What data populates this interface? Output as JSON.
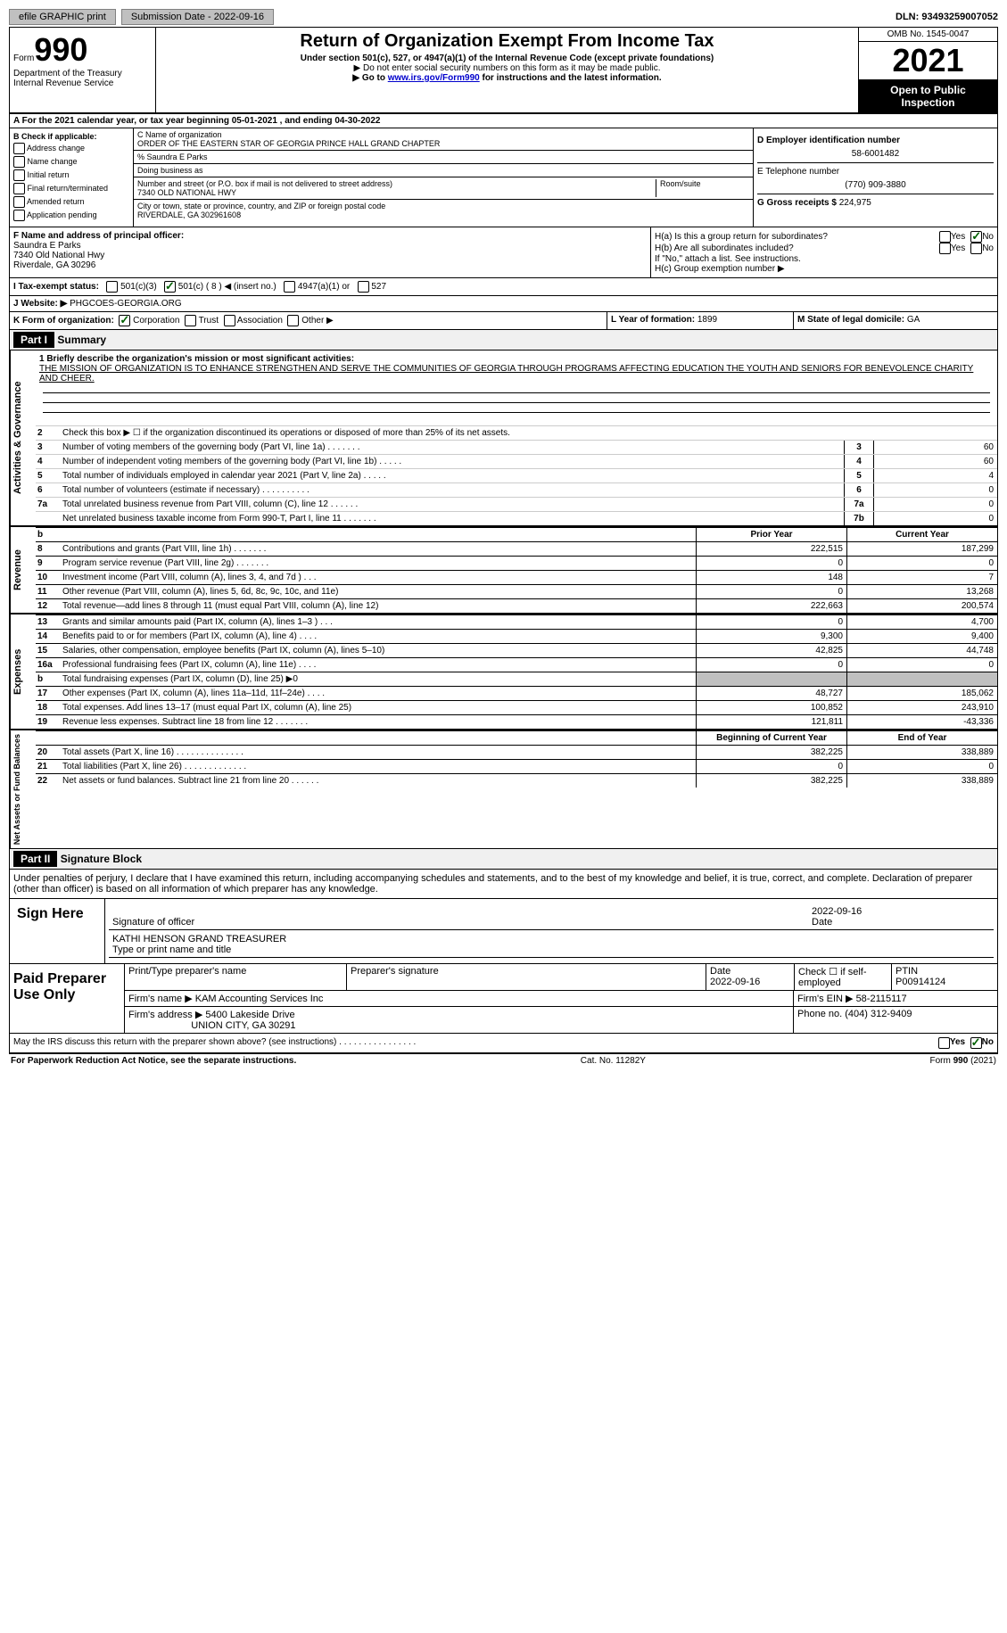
{
  "topbar": {
    "efile": "efile GRAPHIC print",
    "submission": "Submission Date - 2022-09-16",
    "dln": "DLN: 93493259007052"
  },
  "header": {
    "form_prefix": "Form",
    "form_number": "990",
    "dept": "Department of the Treasury",
    "irs": "Internal Revenue Service",
    "title": "Return of Organization Exempt From Income Tax",
    "subtitle": "Under section 501(c), 527, or 4947(a)(1) of the Internal Revenue Code (except private foundations)",
    "note1": "▶ Do not enter social security numbers on this form as it may be made public.",
    "note2_pre": "▶ Go to ",
    "note2_link": "www.irs.gov/Form990",
    "note2_post": " for instructions and the latest information.",
    "omb": "OMB No. 1545-0047",
    "year": "2021",
    "inspect": "Open to Public Inspection"
  },
  "rowA": "A For the 2021 calendar year, or tax year beginning 05-01-2021    , and ending 04-30-2022",
  "sectionB": {
    "label": "B Check if applicable:",
    "opts": [
      "Address change",
      "Name change",
      "Initial return",
      "Final return/terminated",
      "Amended return",
      "Application pending"
    ]
  },
  "sectionC": {
    "name_label": "C Name of organization",
    "name": "ORDER OF THE EASTERN STAR OF GEORGIA PRINCE HALL GRAND CHAPTER",
    "pct": "% Saundra E Parks",
    "dba_label": "Doing business as",
    "street_label": "Number and street (or P.O. box if mail is not delivered to street address)",
    "room_label": "Room/suite",
    "street": "7340 OLD NATIONAL HWY",
    "city_label": "City or town, state or province, country, and ZIP or foreign postal code",
    "city": "RIVERDALE, GA  302961608"
  },
  "sectionD": {
    "ein_label": "D Employer identification number",
    "ein": "58-6001482",
    "tel_label": "E Telephone number",
    "tel": "(770) 909-3880",
    "gross_label": "G Gross receipts $",
    "gross": "224,975"
  },
  "sectionF": {
    "label": "F   Name and address of principal officer:",
    "name": "Saundra E Parks",
    "street": "7340 Old National Hwy",
    "city": "Riverdale, GA   30296"
  },
  "sectionH": {
    "h_a": "H(a)   Is this a group return for subordinates?",
    "h_b": "H(b)   Are all subordinates included?",
    "h_note": "If \"No,\" attach a list. See instructions.",
    "h_c": "H(c)   Group exemption number ▶"
  },
  "rowI": {
    "label": "I     Tax-exempt status:",
    "c3": "501(c)(3)",
    "c": "501(c) ( 8 ) ◀ (insert no.)",
    "a1": "4947(a)(1) or",
    "s527": "527"
  },
  "rowJ": {
    "label": "J    Website: ▶",
    "value": "PHGCOES-GEORGIA.ORG"
  },
  "rowK": {
    "label": "K Form of organization:",
    "corp": "Corporation",
    "trust": "Trust",
    "assoc": "Association",
    "other": "Other ▶",
    "l_label": "L Year of formation:",
    "l_value": "1899",
    "m_label": "M State of legal domicile:",
    "m_value": "GA"
  },
  "part1": {
    "header": "Part I",
    "title": "Summary",
    "vlabel_gov": "Activities & Governance",
    "vlabel_rev": "Revenue",
    "vlabel_exp": "Expenses",
    "vlabel_net": "Net Assets or Fund Balances",
    "line1_label": "1   Briefly describe the organization's mission or most significant activities:",
    "mission": "THE MISSION OF ORGANIZATION IS TO ENHANCE STRENGTHEN AND SERVE THE COMMUNITIES OF GEORGIA THROUGH PROGRAMS AFFECTING EDUCATION THE YOUTH AND SENIORS FOR BENEVOLENCE CHARITY AND CHEER.",
    "line2": "Check this box ▶ ☐ if the organization discontinued its operations or disposed of more than 25% of its net assets.",
    "lines_gov": [
      {
        "n": "3",
        "desc": "Number of voting members of the governing body (Part VI, line 1a)   .   .   .   .   .   .   .",
        "box": "3",
        "val": "60"
      },
      {
        "n": "4",
        "desc": "Number of independent voting members of the governing body (Part VI, line 1b)   .   .   .   .   .",
        "box": "4",
        "val": "60"
      },
      {
        "n": "5",
        "desc": "Total number of individuals employed in calendar year 2021 (Part V, line 2a)   .   .   .   .   .",
        "box": "5",
        "val": "4"
      },
      {
        "n": "6",
        "desc": "Total number of volunteers (estimate if necessary)    .    .    .    .    .    .    .    .    .    .",
        "box": "6",
        "val": "0"
      },
      {
        "n": "7a",
        "desc": "Total unrelated business revenue from Part VIII, column (C), line 12    .    .    .    .    .    .",
        "box": "7a",
        "val": "0"
      },
      {
        "n": "",
        "desc": "Net unrelated business taxable income from Form 990-T, Part I, line 11   .   .   .   .   .   .   .",
        "box": "7b",
        "val": "0"
      }
    ],
    "prior_header": "Prior Year",
    "curr_header": "Current Year",
    "lines_rev": [
      {
        "n": "8",
        "desc": "Contributions and grants (Part VIII, line 1h)   .   .   .   .   .   .   .",
        "prior": "222,515",
        "curr": "187,299"
      },
      {
        "n": "9",
        "desc": "Program service revenue (Part VIII, line 2g)   .   .   .   .   .   .   .",
        "prior": "0",
        "curr": "0"
      },
      {
        "n": "10",
        "desc": "Investment income (Part VIII, column (A), lines 3, 4, and 7d )    .    .    .",
        "prior": "148",
        "curr": "7"
      },
      {
        "n": "11",
        "desc": "Other revenue (Part VIII, column (A), lines 5, 6d, 8c, 9c, 10c, and 11e)",
        "prior": "0",
        "curr": "13,268"
      },
      {
        "n": "12",
        "desc": "Total revenue—add lines 8 through 11 (must equal Part VIII, column (A), line 12)",
        "prior": "222,663",
        "curr": "200,574"
      }
    ],
    "lines_exp": [
      {
        "n": "13",
        "desc": "Grants and similar amounts paid (Part IX, column (A), lines 1–3 )   .   .   .",
        "prior": "0",
        "curr": "4,700"
      },
      {
        "n": "14",
        "desc": "Benefits paid to or for members (Part IX, column (A), line 4)  .  .  .  .",
        "prior": "9,300",
        "curr": "9,400"
      },
      {
        "n": "15",
        "desc": "Salaries, other compensation, employee benefits (Part IX, column (A), lines 5–10)",
        "prior": "42,825",
        "curr": "44,748"
      },
      {
        "n": "16a",
        "desc": "Professional fundraising fees (Part IX, column (A), line 11e)     .     .     .     .",
        "prior": "0",
        "curr": "0"
      },
      {
        "n": "b",
        "desc": "Total fundraising expenses (Part IX, column (D), line 25) ▶0",
        "prior": "",
        "curr": "",
        "shaded": true
      },
      {
        "n": "17",
        "desc": "Other expenses (Part IX, column (A), lines 11a–11d, 11f–24e)    .    .    .    .",
        "prior": "48,727",
        "curr": "185,062"
      },
      {
        "n": "18",
        "desc": "Total expenses. Add lines 13–17 (must equal Part IX, column (A), line 25)",
        "prior": "100,852",
        "curr": "243,910"
      },
      {
        "n": "19",
        "desc": "Revenue less expenses. Subtract line 18 from line 12  .  .  .  .  .  .  .",
        "prior": "121,811",
        "curr": "-43,336"
      }
    ],
    "beg_header": "Beginning of Current Year",
    "end_header": "End of Year",
    "lines_net": [
      {
        "n": "20",
        "desc": "Total assets (Part X, line 16)  .  .  .  .  .  .  .  .  .  .  .  .  .  .",
        "prior": "382,225",
        "curr": "338,889"
      },
      {
        "n": "21",
        "desc": "Total liabilities (Part X, line 26)  .  .  .  .  .  .  .  .  .  .  .  .  .",
        "prior": "0",
        "curr": "0"
      },
      {
        "n": "22",
        "desc": "Net assets or fund balances. Subtract line 21 from line 20  .  .  .  .  .  .",
        "prior": "382,225",
        "curr": "338,889"
      }
    ]
  },
  "part2": {
    "header": "Part II",
    "title": "Signature Block",
    "declare": "Under penalties of perjury, I declare that I have examined this return, including accompanying schedules and statements, and to the best of my knowledge and belief, it is true, correct, and complete. Declaration of preparer (other than officer) is based on all information of which preparer has any knowledge.",
    "sign_here": "Sign Here",
    "sig_officer": "Signature of officer",
    "sig_date": "2022-09-16",
    "date_label": "Date",
    "sig_name": "KATHI HENSON  GRAND TREASURER",
    "sig_name_label": "Type or print name and title",
    "paid_label": "Paid Preparer Use Only",
    "prep_name_label": "Print/Type preparer's name",
    "prep_sig_label": "Preparer's signature",
    "prep_date_label": "Date",
    "prep_date": "2022-09-16",
    "prep_check": "Check ☐ if self-employed",
    "ptin_label": "PTIN",
    "ptin": "P00914124",
    "firm_name_label": "Firm's name     ▶",
    "firm_name": "KAM Accounting Services Inc",
    "firm_ein_label": "Firm's EIN ▶",
    "firm_ein": "58-2115117",
    "firm_addr_label": "Firm's address ▶",
    "firm_addr1": "5400 Lakeside Drive",
    "firm_addr2": "UNION CITY, GA  30291",
    "phone_label": "Phone no.",
    "phone": "(404) 312-9409",
    "discuss": "May the IRS discuss this return with the preparer shown above? (see instructions)    .    .    .    .    .    .    .    .    .    .    .    .    .    .    .    ."
  },
  "footer": {
    "left": "For Paperwork Reduction Act Notice, see the separate instructions.",
    "mid": "Cat. No. 11282Y",
    "right": "Form 990 (2021)"
  },
  "labels": {
    "yes": "Yes",
    "no": "No"
  }
}
